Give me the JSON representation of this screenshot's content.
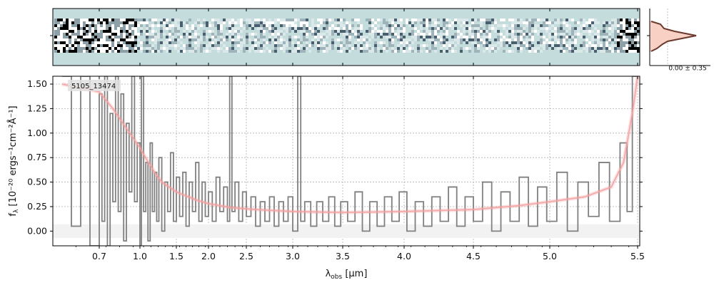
{
  "chart_data": {
    "type": "line",
    "object_id": "5105_13474",
    "xlabel_main": "λ",
    "xlabel_sub": "obs",
    "xlabel_unit": "[μm]",
    "ylabel_main": "f",
    "ylabel_sub": "λ",
    "ylabel_unit": "[10⁻²⁰ ergs⁻¹cm⁻²Å⁻¹]",
    "xlim": [
      0.6,
      5.5
    ],
    "ylim": [
      -0.15,
      1.58
    ],
    "x_ticks": [
      0.7,
      1.0,
      1.5,
      2.0,
      2.5,
      3.0,
      3.5,
      4.0,
      4.5,
      5.0,
      5.5
    ],
    "x_tick_labels": [
      "0.7",
      "1.0",
      "1.5",
      "2.0",
      "2.5",
      "3.0",
      "3.5",
      "4.0",
      "4.5",
      "5.0",
      "5.5"
    ],
    "y_ticks": [
      0.0,
      0.25,
      0.5,
      0.75,
      1.0,
      1.25,
      1.5
    ],
    "y_tick_labels": [
      "0.00",
      "0.25",
      "0.50",
      "0.75",
      "1.00",
      "1.25",
      "1.50"
    ],
    "grid": true,
    "profile_label": "0.00 ± 0.35",
    "series": [
      {
        "color": "#808080",
        "style": "steps",
        "points": [
          [
            0.62,
            1.58
          ],
          [
            0.64,
            0.05
          ],
          [
            0.66,
            1.58
          ],
          [
            0.68,
            -0.15
          ],
          [
            0.7,
            1.4
          ],
          [
            0.72,
            0.1
          ],
          [
            0.74,
            1.58
          ],
          [
            0.76,
            -0.15
          ],
          [
            0.78,
            1.2
          ],
          [
            0.8,
            0.3
          ],
          [
            0.82,
            1.58
          ],
          [
            0.84,
            0.2
          ],
          [
            0.86,
            1.4
          ],
          [
            0.88,
            -0.1
          ],
          [
            0.9,
            1.1
          ],
          [
            0.92,
            0.4
          ],
          [
            0.94,
            1.58
          ],
          [
            0.96,
            0.3
          ],
          [
            0.98,
            0.9
          ],
          [
            1.0,
            -0.15
          ],
          [
            1.02,
            1.58
          ],
          [
            1.05,
            0.2
          ],
          [
            1.08,
            0.7
          ],
          [
            1.11,
            -0.1
          ],
          [
            1.14,
            0.9
          ],
          [
            1.17,
            0.2
          ],
          [
            1.2,
            0.6
          ],
          [
            1.23,
            0.1
          ],
          [
            1.26,
            0.75
          ],
          [
            1.3,
            0.0
          ],
          [
            1.34,
            0.5
          ],
          [
            1.38,
            0.2
          ],
          [
            1.42,
            0.8
          ],
          [
            1.46,
            0.1
          ],
          [
            1.5,
            0.55
          ],
          [
            1.55,
            0.15
          ],
          [
            1.6,
            0.6
          ],
          [
            1.65,
            0.05
          ],
          [
            1.7,
            0.5
          ],
          [
            1.75,
            0.2
          ],
          [
            1.8,
            0.7
          ],
          [
            1.85,
            0.1
          ],
          [
            1.9,
            0.5
          ],
          [
            1.95,
            0.15
          ],
          [
            2.0,
            0.4
          ],
          [
            2.05,
            0.1
          ],
          [
            2.1,
            0.55
          ],
          [
            2.15,
            0.2
          ],
          [
            2.2,
            0.45
          ],
          [
            2.25,
            0.1
          ],
          [
            2.28,
            1.58
          ],
          [
            2.31,
            0.2
          ],
          [
            2.35,
            0.5
          ],
          [
            2.4,
            0.1
          ],
          [
            2.45,
            0.4
          ],
          [
            2.5,
            0.15
          ],
          [
            2.55,
            0.35
          ],
          [
            2.6,
            0.05
          ],
          [
            2.65,
            0.3
          ],
          [
            2.7,
            0.1
          ],
          [
            2.75,
            0.35
          ],
          [
            2.8,
            0.05
          ],
          [
            2.85,
            0.3
          ],
          [
            2.9,
            0.1
          ],
          [
            2.95,
            0.35
          ],
          [
            3.0,
            0.0
          ],
          [
            3.05,
            1.58
          ],
          [
            3.08,
            0.1
          ],
          [
            3.12,
            0.3
          ],
          [
            3.18,
            0.05
          ],
          [
            3.24,
            0.3
          ],
          [
            3.3,
            0.1
          ],
          [
            3.36,
            0.35
          ],
          [
            3.42,
            0.05
          ],
          [
            3.48,
            0.3
          ],
          [
            3.54,
            0.1
          ],
          [
            3.6,
            0.4
          ],
          [
            3.66,
            0.0
          ],
          [
            3.72,
            0.3
          ],
          [
            3.78,
            0.05
          ],
          [
            3.84,
            0.35
          ],
          [
            3.9,
            0.1
          ],
          [
            3.96,
            0.4
          ],
          [
            4.02,
            0.0
          ],
          [
            4.08,
            0.3
          ],
          [
            4.14,
            0.05
          ],
          [
            4.2,
            0.35
          ],
          [
            4.26,
            0.1
          ],
          [
            4.32,
            0.45
          ],
          [
            4.38,
            0.05
          ],
          [
            4.44,
            0.35
          ],
          [
            4.5,
            0.1
          ],
          [
            4.56,
            0.5
          ],
          [
            4.62,
            0.0
          ],
          [
            4.68,
            0.4
          ],
          [
            4.74,
            0.1
          ],
          [
            4.8,
            0.55
          ],
          [
            4.86,
            0.05
          ],
          [
            4.92,
            0.45
          ],
          [
            4.98,
            0.1
          ],
          [
            5.04,
            0.6
          ],
          [
            5.1,
            0.0
          ],
          [
            5.16,
            0.5
          ],
          [
            5.22,
            0.15
          ],
          [
            5.28,
            0.7
          ],
          [
            5.34,
            0.1
          ],
          [
            5.4,
            0.9
          ],
          [
            5.44,
            0.2
          ],
          [
            5.47,
            1.58
          ],
          [
            5.5,
            1.58
          ]
        ]
      },
      {
        "color": "#f4a0a0",
        "style": "line",
        "points": [
          [
            0.62,
            1.5
          ],
          [
            0.7,
            1.42
          ],
          [
            0.8,
            1.25
          ],
          [
            0.9,
            1.05
          ],
          [
            1.0,
            0.85
          ],
          [
            1.1,
            0.72
          ],
          [
            1.2,
            0.6
          ],
          [
            1.3,
            0.5
          ],
          [
            1.5,
            0.4
          ],
          [
            1.8,
            0.32
          ],
          [
            2.0,
            0.28
          ],
          [
            2.3,
            0.24
          ],
          [
            2.6,
            0.22
          ],
          [
            3.0,
            0.2
          ],
          [
            3.5,
            0.19
          ],
          [
            4.0,
            0.2
          ],
          [
            4.5,
            0.22
          ],
          [
            4.8,
            0.26
          ],
          [
            5.0,
            0.3
          ],
          [
            5.2,
            0.35
          ],
          [
            5.35,
            0.45
          ],
          [
            5.42,
            0.7
          ],
          [
            5.47,
            1.2
          ],
          [
            5.5,
            1.58
          ]
        ]
      }
    ]
  },
  "spectrum2d": {
    "background_color": "#c5dcdc",
    "profile_fill_color": "#f9d0c4",
    "profile_line_color": "#6b3a2e"
  }
}
